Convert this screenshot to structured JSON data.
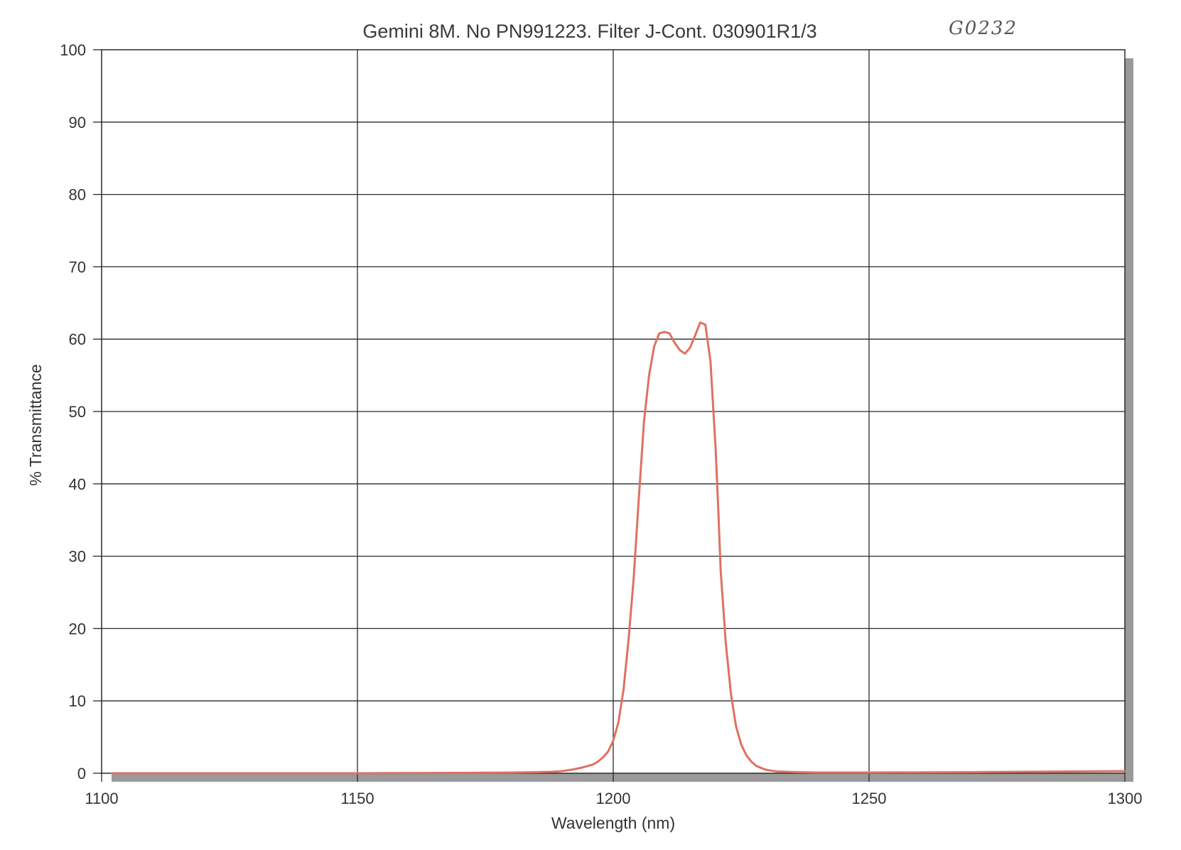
{
  "chart_data": {
    "type": "line",
    "title": "Gemini 8M. No PN991223. Filter J-Cont. 030901R1/3",
    "annotation": "G0232",
    "xlabel": "Wavelength (nm)",
    "ylabel": "% Transmittance",
    "xlim": [
      1100,
      1300
    ],
    "ylim": [
      0,
      100
    ],
    "xticks": [
      1100,
      1150,
      1200,
      1250,
      1300
    ],
    "yticks": [
      0,
      10,
      20,
      30,
      40,
      50,
      60,
      70,
      80,
      90,
      100
    ],
    "grid": true,
    "legend": "none",
    "series": [
      {
        "color": "#e07060",
        "x": [
          1102,
          1150,
          1170,
          1180,
          1185,
          1188,
          1190,
          1192,
          1194,
          1196,
          1197,
          1198,
          1199,
          1200,
          1201,
          1202,
          1203,
          1204,
          1205,
          1206,
          1207,
          1208,
          1209,
          1210,
          1211,
          1212,
          1213,
          1214,
          1215,
          1216,
          1217,
          1218,
          1219,
          1220,
          1220.5,
          1221,
          1222,
          1223,
          1224,
          1225,
          1226,
          1227,
          1228,
          1229,
          1230,
          1232,
          1234,
          1236,
          1240,
          1250,
          1270,
          1300
        ],
        "y": [
          0,
          0,
          0.05,
          0.1,
          0.15,
          0.2,
          0.3,
          0.5,
          0.8,
          1.2,
          1.6,
          2.2,
          3.0,
          4.5,
          7.0,
          11.5,
          18.5,
          27.0,
          38.0,
          48.5,
          55.0,
          59.0,
          60.8,
          61.0,
          60.8,
          59.5,
          58.5,
          58.0,
          58.8,
          60.5,
          62.3,
          62.0,
          57.0,
          45.0,
          37.0,
          28.0,
          18.0,
          11.0,
          6.5,
          4.0,
          2.5,
          1.6,
          1.0,
          0.7,
          0.45,
          0.25,
          0.2,
          0.15,
          0.1,
          0.1,
          0.15,
          0.3
        ]
      }
    ]
  }
}
